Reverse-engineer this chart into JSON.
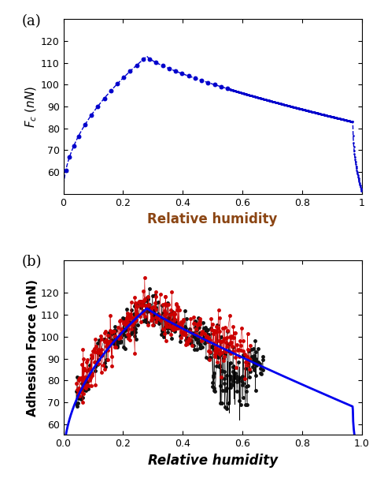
{
  "panel_a": {
    "label": "(a)",
    "ylabel": "$F_c$ $(nN)$",
    "xlabel": "Relative humidity",
    "xlabel_color": "#8B4513",
    "ylim": [
      50,
      130
    ],
    "xlim": [
      0,
      1.0
    ],
    "yticks": [
      60,
      70,
      80,
      90,
      100,
      110,
      120
    ],
    "xticks": [
      0.0,
      0.2,
      0.4,
      0.6,
      0.8,
      1.0
    ],
    "curve_color": "#0000CC",
    "dot_color": "#0000CC",
    "dot_size": 18
  },
  "panel_b": {
    "label": "(b)",
    "ylabel": "Adhesion Force (nN)",
    "xlabel": "Relative humidity",
    "xlabel_color": "#000000",
    "ylim": [
      55,
      135
    ],
    "xlim": [
      0.0,
      1.0
    ],
    "yticks": [
      60,
      70,
      80,
      90,
      100,
      110,
      120
    ],
    "xticks": [
      0.0,
      0.2,
      0.4,
      0.6,
      0.8,
      1.0
    ],
    "curve_color": "#0000EE",
    "red_dot_color": "#CC0000",
    "black_dot_color": "#111111",
    "dot_size": 3.5
  }
}
